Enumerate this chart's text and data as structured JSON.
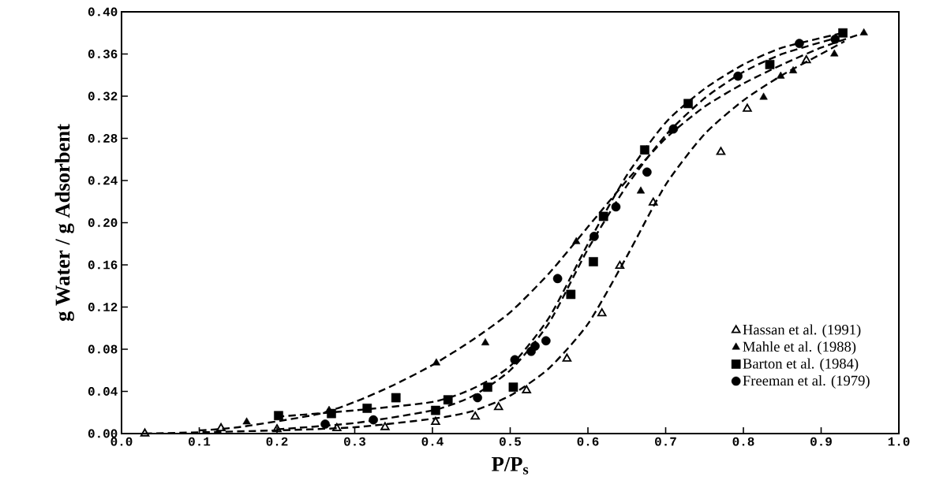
{
  "chart_data": {
    "type": "scatter",
    "xlabel": "P/P$_{s}$",
    "ylabel": "g Water / g Adsorbent",
    "xlim": [
      0.0,
      1.0
    ],
    "ylim": [
      0.0,
      0.4
    ],
    "xticks": [
      {
        "value": 0.0,
        "label": "0.0"
      },
      0.1,
      0.2,
      0.3,
      0.4,
      0.5,
      0.6,
      0.7,
      0.8,
      0.9,
      {
        "value": 1.0,
        "label": "1.0"
      }
    ],
    "yticks": [
      {
        "value": 0.0,
        "label": "0.00"
      },
      0.04,
      0.08,
      0.12,
      0.16,
      {
        "value": 0.2,
        "label": "0.20"
      },
      0.24,
      0.28,
      0.32,
      0.36,
      {
        "value": 0.4,
        "label": "0.40"
      }
    ],
    "grid": false,
    "legend": "bottom right",
    "series": [
      {
        "name": "Hassan et al. (1991)",
        "marker": "triangle-open",
        "color": "#000000",
        "x": [
          0.03,
          0.128,
          0.2,
          0.277,
          0.339,
          0.404,
          0.455,
          0.485,
          0.521,
          0.573,
          0.618,
          0.641,
          0.684,
          0.771,
          0.805,
          0.881
        ],
        "values": [
          0.0,
          0.005,
          0.004,
          0.005,
          0.006,
          0.011,
          0.016,
          0.025,
          0.041,
          0.071,
          0.114,
          0.159,
          0.219,
          0.267,
          0.308,
          0.354
        ]
      },
      {
        "name": "Mahle et al. (1988)",
        "marker": "triangle",
        "color": "#000000",
        "x": [
          0.161,
          0.267,
          0.405,
          0.468,
          0.585,
          0.668,
          0.707,
          0.826,
          0.848,
          0.864,
          0.917,
          0.955
        ],
        "values": [
          0.011,
          0.022,
          0.067,
          0.086,
          0.182,
          0.23,
          0.287,
          0.319,
          0.339,
          0.344,
          0.36,
          0.38
        ]
      },
      {
        "name": "Barton et al. (1984)",
        "marker": "square",
        "color": "#000000",
        "x": [
          0.202,
          0.27,
          0.316,
          0.353,
          0.404,
          0.42,
          0.471,
          0.504,
          0.578,
          0.607,
          0.62,
          0.673,
          0.729,
          0.834,
          0.928
        ],
        "values": [
          0.017,
          0.019,
          0.024,
          0.034,
          0.022,
          0.032,
          0.044,
          0.044,
          0.132,
          0.163,
          0.206,
          0.269,
          0.313,
          0.35,
          0.38
        ]
      },
      {
        "name": "Freeman et al. (1979)",
        "marker": "circle",
        "color": "#000000",
        "x": [
          0.262,
          0.324,
          0.458,
          0.506,
          0.527,
          0.532,
          0.546,
          0.561,
          0.608,
          0.636,
          0.676,
          0.71,
          0.793,
          0.872,
          0.918
        ],
        "values": [
          0.009,
          0.013,
          0.034,
          0.07,
          0.078,
          0.083,
          0.088,
          0.147,
          0.187,
          0.215,
          0.248,
          0.289,
          0.339,
          0.37,
          0.374
        ]
      },
      {
        "type": "line",
        "line_style": "dashed",
        "marker": "none",
        "color": "#000000",
        "x": [
          0.03,
          0.2,
          0.3,
          0.4,
          0.45,
          0.5,
          0.55,
          0.6,
          0.65,
          0.7,
          0.75,
          0.8,
          0.85,
          0.9,
          0.93
        ],
        "values": [
          0.0,
          0.003,
          0.006,
          0.014,
          0.021,
          0.036,
          0.062,
          0.104,
          0.168,
          0.236,
          0.284,
          0.316,
          0.34,
          0.36,
          0.372
        ]
      },
      {
        "type": "line",
        "line_style": "dashed",
        "marker": "none",
        "color": "#000000",
        "x": [
          0.1,
          0.15,
          0.25,
          0.3,
          0.35,
          0.4,
          0.45,
          0.5,
          0.55,
          0.6,
          0.65,
          0.7,
          0.75,
          0.8,
          0.85,
          0.9,
          0.955
        ],
        "values": [
          0.003,
          0.006,
          0.018,
          0.03,
          0.046,
          0.065,
          0.088,
          0.115,
          0.152,
          0.196,
          0.24,
          0.28,
          0.31,
          0.332,
          0.35,
          0.366,
          0.38
        ]
      },
      {
        "type": "line",
        "line_style": "dashed",
        "marker": "none",
        "color": "#000000",
        "x": [
          0.2,
          0.3,
          0.4,
          0.45,
          0.5,
          0.55,
          0.6,
          0.65,
          0.7,
          0.75,
          0.8,
          0.85,
          0.928
        ],
        "values": [
          0.016,
          0.022,
          0.03,
          0.042,
          0.064,
          0.11,
          0.18,
          0.245,
          0.295,
          0.327,
          0.35,
          0.366,
          0.38
        ]
      },
      {
        "type": "line",
        "line_style": "dashed",
        "marker": "none",
        "color": "#000000",
        "x": [
          0.2,
          0.3,
          0.4,
          0.45,
          0.5,
          0.55,
          0.6,
          0.65,
          0.7,
          0.75,
          0.8,
          0.85,
          0.918
        ],
        "values": [
          0.004,
          0.01,
          0.022,
          0.035,
          0.06,
          0.105,
          0.175,
          0.235,
          0.283,
          0.318,
          0.343,
          0.36,
          0.375
        ]
      }
    ]
  }
}
